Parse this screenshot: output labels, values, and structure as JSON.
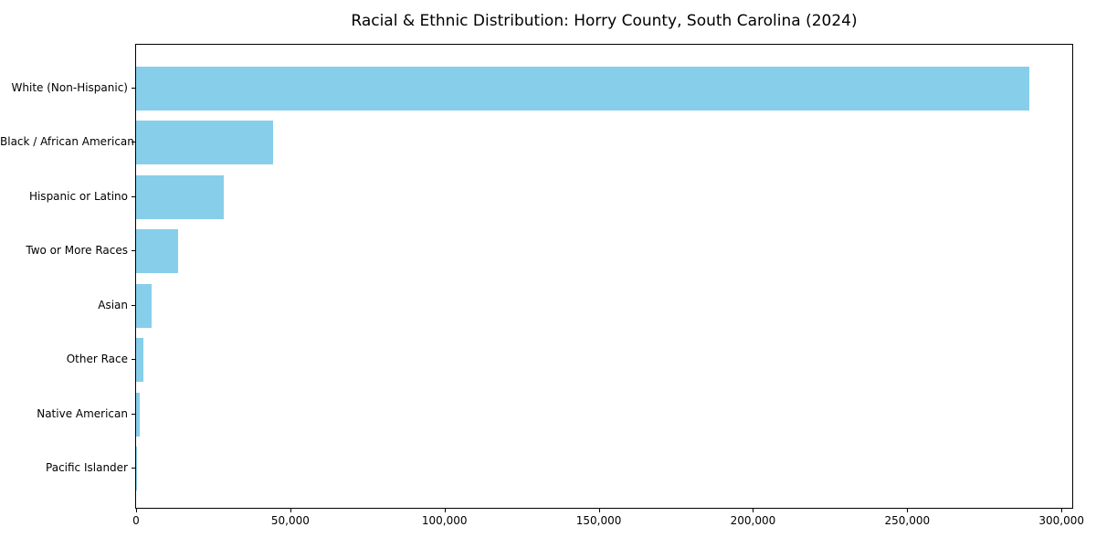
{
  "title": "Racial & Ethnic Distribution: Horry County, South Carolina (2024)",
  "chart_data": {
    "type": "bar",
    "orientation": "horizontal",
    "title": "Racial & Ethnic Distribution: Horry County, South Carolina (2024)",
    "xlabel": "",
    "ylabel": "",
    "categories": [
      "White (Non-Hispanic)",
      "Black / African American",
      "Hispanic or Latino",
      "Two or More Races",
      "Asian",
      "Other Race",
      "Native American",
      "Pacific Islander"
    ],
    "values": [
      289500,
      44500,
      28300,
      13500,
      4900,
      2400,
      1100,
      300
    ],
    "xlim": [
      0,
      303500
    ],
    "xticks": [
      0,
      50000,
      100000,
      150000,
      200000,
      250000,
      300000
    ],
    "xtick_labels": [
      "0",
      "50,000",
      "100,000",
      "150,000",
      "200,000",
      "250,000",
      "300,000"
    ],
    "bar_color": "#87CEEB",
    "axis_color": "#000000",
    "grid": false,
    "legend": null
  }
}
